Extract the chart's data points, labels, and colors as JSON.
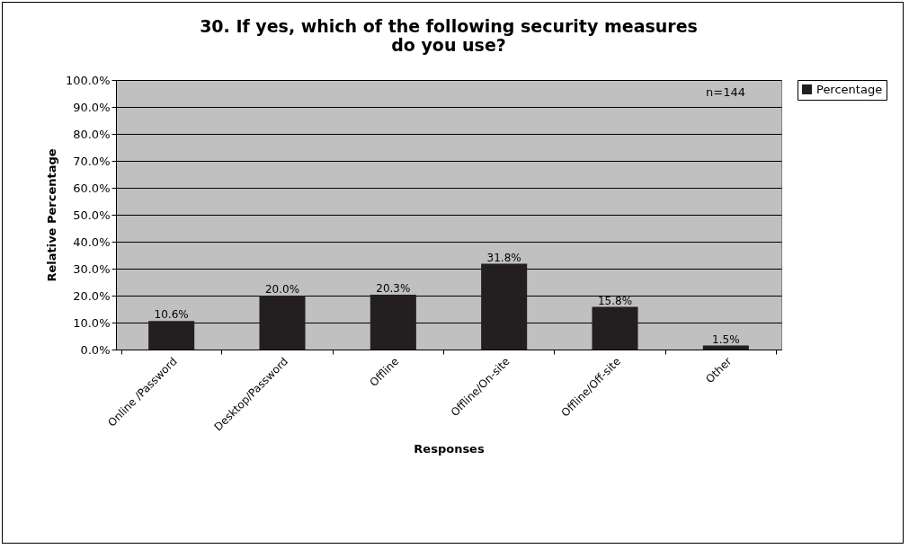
{
  "chart_data": {
    "type": "bar",
    "title": "30. If yes, which of the following security measures do you use?",
    "xlabel": "Responses",
    "ylabel": "Relative Percentage",
    "categories": [
      "Online /Password",
      "Desktop/Password",
      "Offline",
      "Offline/On-site",
      "Offline/Off-site",
      "Other"
    ],
    "series": [
      {
        "name": "Percentage",
        "color": "#231f20",
        "values": [
          10.6,
          20.0,
          20.3,
          31.8,
          15.8,
          1.5
        ],
        "value_labels": [
          "10.6%",
          "20.0%",
          "20.3%",
          "31.8%",
          "15.8%",
          "1.5%"
        ]
      }
    ],
    "ylim": [
      0,
      100
    ],
    "yticks": [
      {
        "value": 0,
        "label": "0.0%"
      },
      {
        "value": 10,
        "label": "10.0%"
      },
      {
        "value": 20,
        "label": "20.0%"
      },
      {
        "value": 30,
        "label": "30.0%"
      },
      {
        "value": 40,
        "label": "40.0%"
      },
      {
        "value": 50,
        "label": "50.0%"
      },
      {
        "value": 60,
        "label": "60.0%"
      },
      {
        "value": 70,
        "label": "70.0%"
      },
      {
        "value": 80,
        "label": "80.0%"
      },
      {
        "value": 90,
        "label": "90.0%"
      },
      {
        "value": 100,
        "label": "100.0%"
      }
    ],
    "annotations": [
      "n=144"
    ],
    "grid": "y",
    "legend": "right"
  }
}
